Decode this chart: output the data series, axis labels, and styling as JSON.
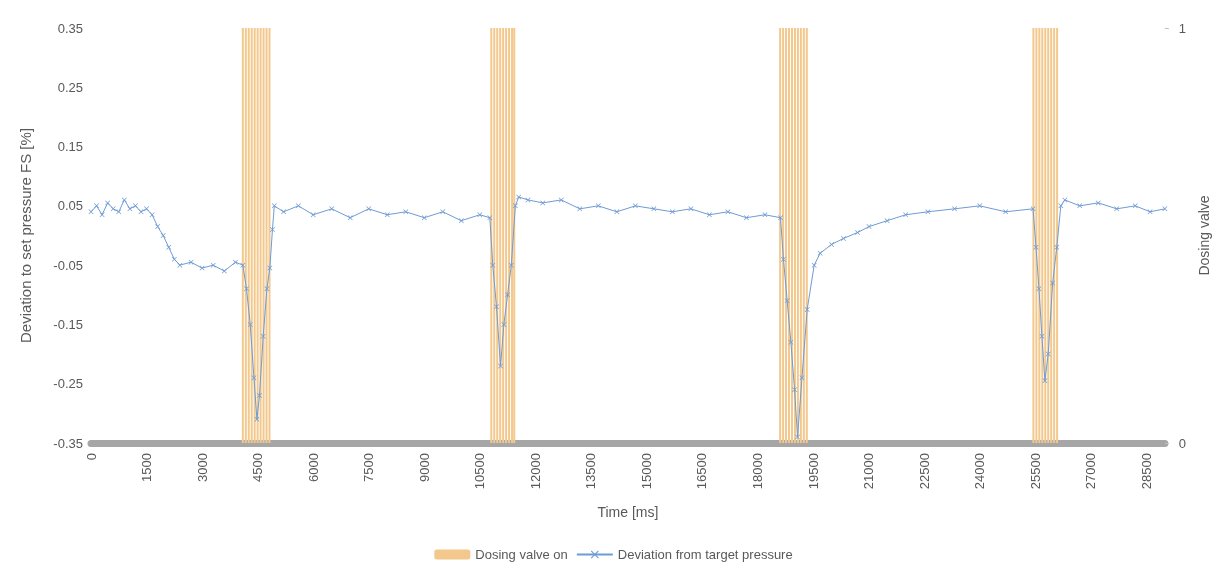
{
  "chart_data": {
    "type": "line",
    "xlabel": "Time [ms]",
    "ylabel": "Deviation to set pressure FS [%]",
    "y2label": "Dosing valve",
    "xlim": [
      0,
      29000
    ],
    "xticks": [
      0,
      1500,
      3000,
      4500,
      6000,
      7500,
      9000,
      10500,
      12000,
      13500,
      15000,
      16500,
      18000,
      19500,
      21000,
      22500,
      24000,
      25500,
      27000,
      28500
    ],
    "ylim": [
      -0.35,
      0.35
    ],
    "yticks": [
      -0.35,
      -0.25,
      -0.15,
      -0.05,
      0.05,
      0.15,
      0.25,
      0.35
    ],
    "y2lim": [
      0,
      1
    ],
    "y2ticks": [
      0,
      1
    ],
    "grid": false,
    "legend": "bottom",
    "marker": "cross",
    "line_style": "solid",
    "series": [
      {
        "name": "Dosing valve on",
        "type": "bar",
        "axis": "y2",
        "color": "#f3c88c",
        "x": [
          4100,
          4180,
          4260,
          4340,
          4420,
          4500,
          4580,
          4660,
          4740,
          4820,
          10810,
          10890,
          10970,
          11050,
          11130,
          11210,
          11290,
          11370,
          11430,
          18610,
          18690,
          18770,
          18850,
          18930,
          19010,
          19090,
          19170,
          19250,
          19330,
          25450,
          25530,
          25610,
          25690,
          25770,
          25850,
          25930,
          26010,
          26090
        ],
        "values": [
          1,
          1,
          1,
          1,
          1,
          1,
          1,
          1,
          1,
          1,
          1,
          1,
          1,
          1,
          1,
          1,
          1,
          1,
          1,
          1,
          1,
          1,
          1,
          1,
          1,
          1,
          1,
          1,
          1,
          1,
          1,
          1,
          1,
          1,
          1,
          1,
          1,
          1
        ]
      },
      {
        "name": "Deviation from target pressure",
        "color": "#6f9bd3",
        "x": [
          0,
          150,
          300,
          450,
          600,
          750,
          900,
          1050,
          1200,
          1350,
          1500,
          1650,
          1800,
          1950,
          2100,
          2250,
          2400,
          2700,
          3000,
          3300,
          3600,
          3900,
          4100,
          4200,
          4300,
          4400,
          4480,
          4550,
          4650,
          4750,
          4830,
          4900,
          4950,
          5200,
          5600,
          6000,
          6500,
          7000,
          7500,
          8000,
          8500,
          9000,
          9500,
          10000,
          10500,
          10770,
          10850,
          10950,
          11060,
          11150,
          11250,
          11350,
          11460,
          11550,
          11800,
          12200,
          12700,
          13200,
          13700,
          14200,
          14700,
          15200,
          15700,
          16200,
          16700,
          17200,
          17700,
          18200,
          18620,
          18700,
          18800,
          18900,
          19000,
          19080,
          19200,
          19340,
          19530,
          19690,
          20000,
          20320,
          20700,
          21010,
          21500,
          22000,
          22600,
          23320,
          24000,
          24700,
          25440,
          25520,
          25600,
          25680,
          25760,
          25850,
          25970,
          26080,
          26190,
          26300,
          26700,
          27200,
          27700,
          28200,
          28600,
          29000
        ],
        "values": [
          0.04,
          0.05,
          0.035,
          0.055,
          0.045,
          0.04,
          0.06,
          0.045,
          0.05,
          0.04,
          0.045,
          0.035,
          0.015,
          0,
          -0.02,
          -0.04,
          -0.05,
          -0.045,
          -0.055,
          -0.05,
          -0.06,
          -0.045,
          -0.05,
          -0.09,
          -0.15,
          -0.24,
          -0.31,
          -0.27,
          -0.17,
          -0.09,
          -0.055,
          0.01,
          0.05,
          0.04,
          0.05,
          0.035,
          0.045,
          0.03,
          0.045,
          0.035,
          0.04,
          0.03,
          0.04,
          0.025,
          0.035,
          0.03,
          -0.05,
          -0.12,
          -0.22,
          -0.15,
          -0.1,
          -0.05,
          0.05,
          0.065,
          0.06,
          0.055,
          0.06,
          0.045,
          0.05,
          0.04,
          0.05,
          0.045,
          0.04,
          0.045,
          0.035,
          0.04,
          0.03,
          0.035,
          0.03,
          -0.04,
          -0.11,
          -0.18,
          -0.26,
          -0.34,
          -0.24,
          -0.125,
          -0.05,
          -0.03,
          -0.015,
          -0.005,
          0.005,
          0.015,
          0.025,
          0.035,
          0.04,
          0.045,
          0.05,
          0.04,
          0.045,
          -0.02,
          -0.09,
          -0.17,
          -0.245,
          -0.2,
          -0.08,
          -0.02,
          0.05,
          0.06,
          0.05,
          0.055,
          0.045,
          0.05,
          0.04,
          0.045
        ]
      }
    ]
  }
}
